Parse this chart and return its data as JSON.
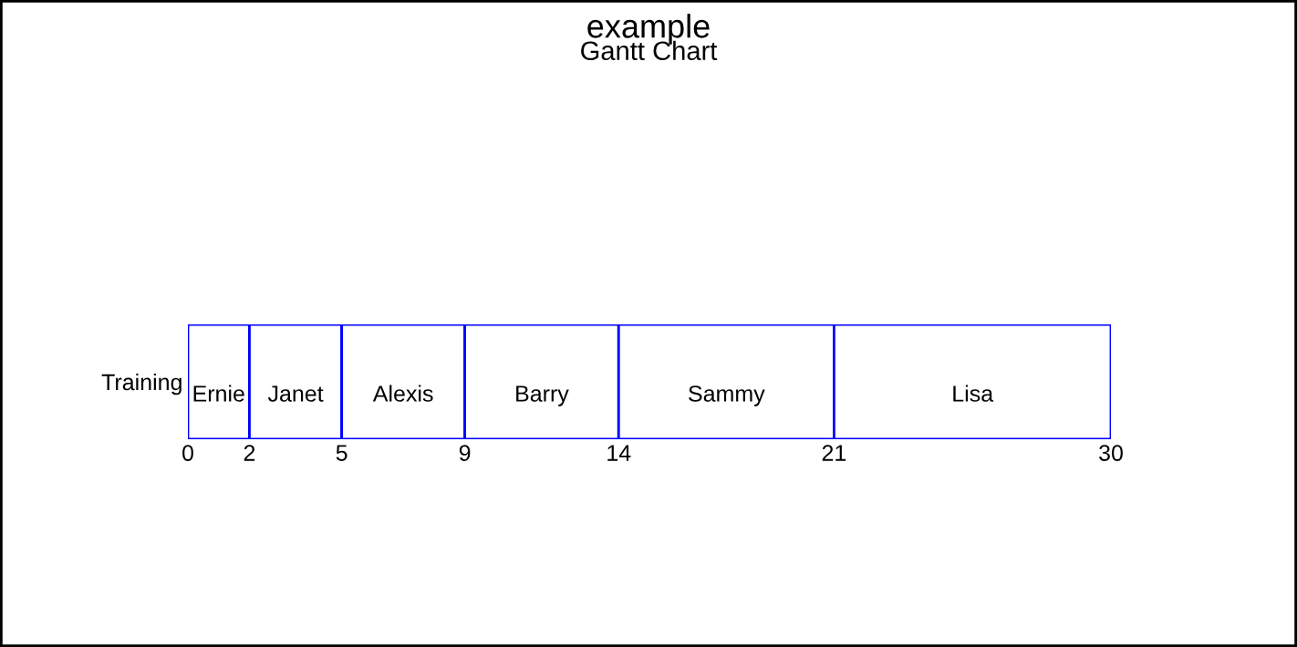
{
  "chart_data": {
    "type": "bar",
    "orientation": "horizontal",
    "stacked": true,
    "title": "example",
    "subtitle": "Gantt Chart",
    "categories": [
      "Training"
    ],
    "series": [
      {
        "name": "Ernie",
        "color": "#ffffff",
        "values": [
          2
        ]
      },
      {
        "name": "Janet",
        "color": "#ffffff",
        "values": [
          3
        ]
      },
      {
        "name": "Alexis",
        "color": "#ffffff",
        "values": [
          4
        ]
      },
      {
        "name": "Barry",
        "color": "#ffffff",
        "values": [
          5
        ]
      },
      {
        "name": "Sammy",
        "color": "#ffffff",
        "values": [
          7
        ]
      },
      {
        "name": "Lisa",
        "color": "#ffffff",
        "values": [
          9
        ]
      }
    ],
    "xlim": [
      0,
      30
    ],
    "xticks": [
      0,
      2,
      5,
      9,
      14,
      21,
      30
    ],
    "grid": false,
    "legend": false
  }
}
